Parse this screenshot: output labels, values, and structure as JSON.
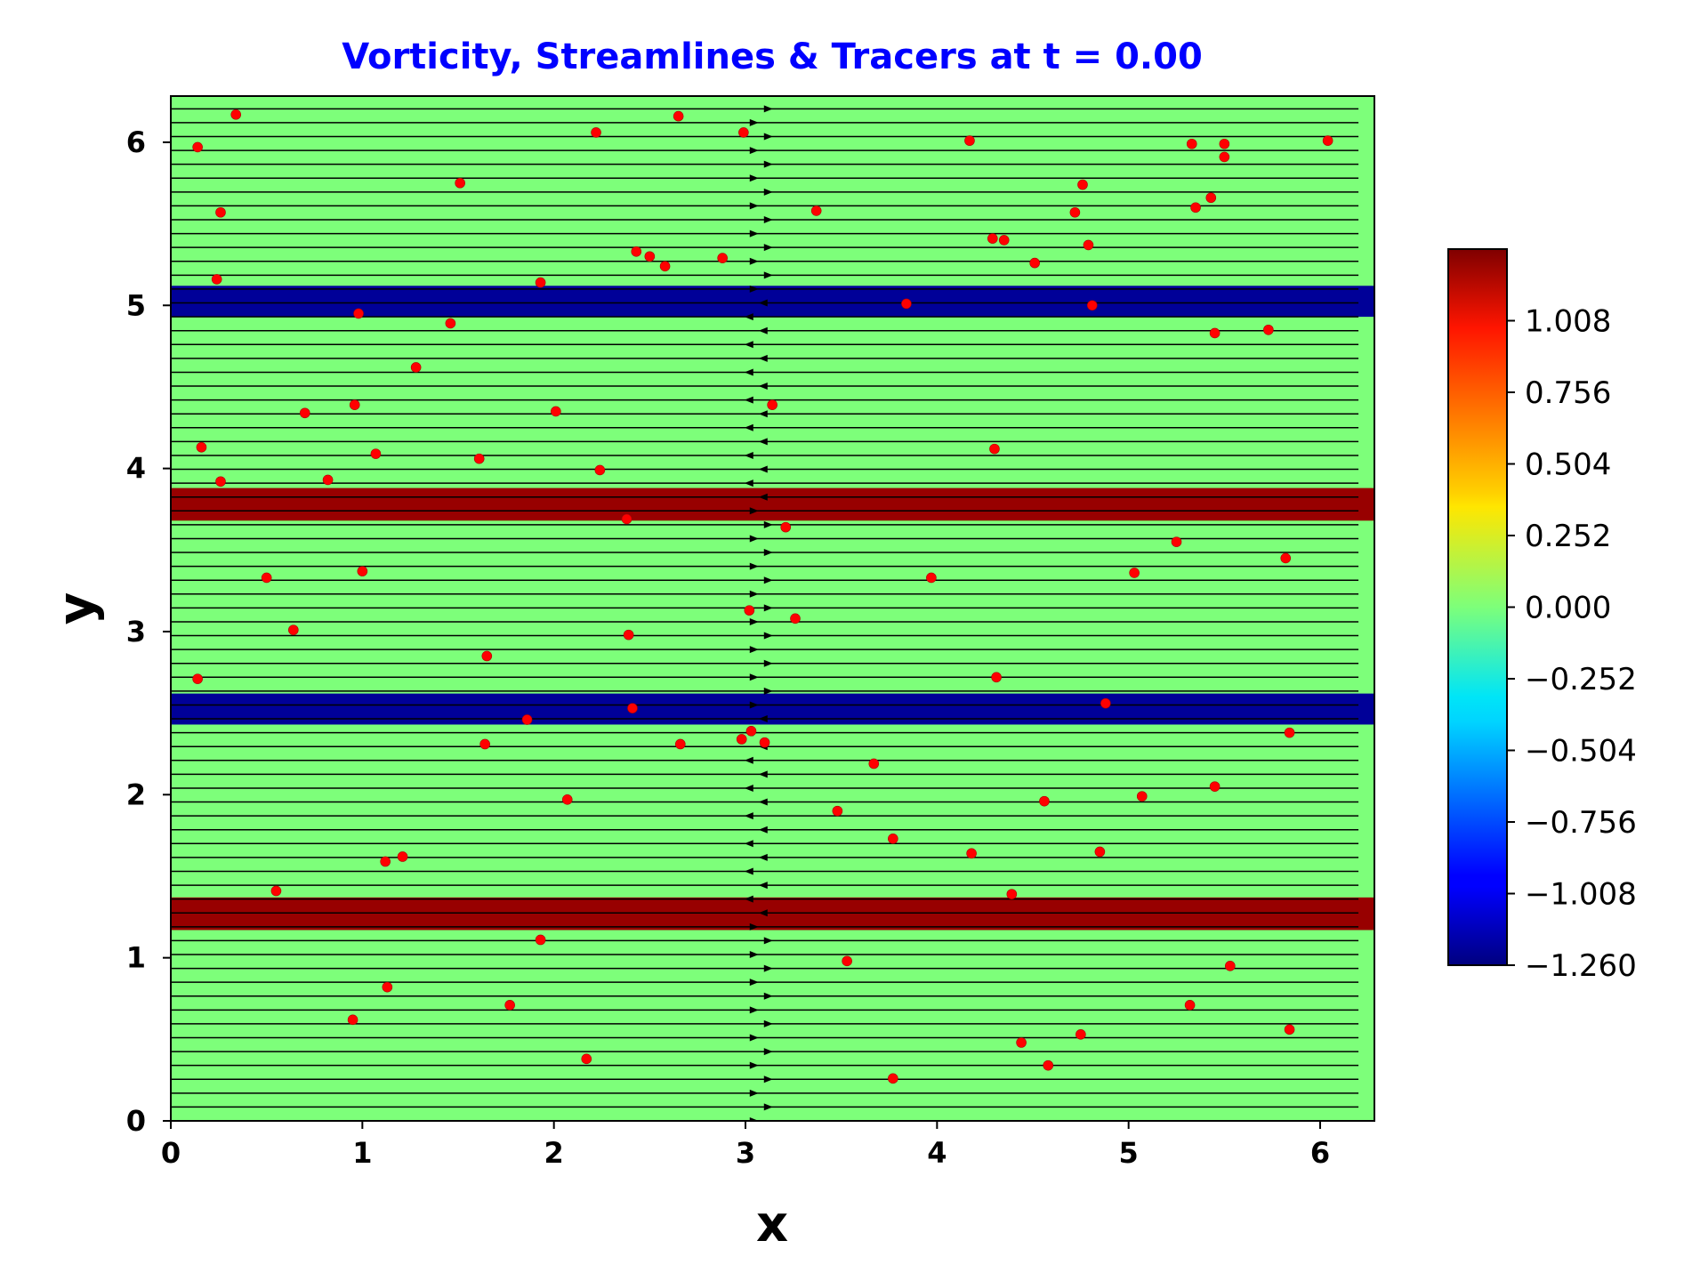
{
  "chart_data": {
    "type": "heatmap",
    "title": "Vorticity, Streamlines & Tracers at t = 0.00",
    "xlabel": "x",
    "ylabel": "y",
    "xlim": [
      0,
      6.2832
    ],
    "ylim": [
      0,
      6.2832
    ],
    "x_ticks": [
      "0",
      "1",
      "2",
      "3",
      "4",
      "5",
      "6"
    ],
    "y_ticks": [
      "0",
      "1",
      "2",
      "3",
      "4",
      "5",
      "6"
    ],
    "background_vorticity": 0.0,
    "vorticity_bands": [
      {
        "y0": 1.17,
        "y1": 1.37,
        "value": 1.2
      },
      {
        "y0": 2.43,
        "y1": 2.62,
        "value": -1.2
      },
      {
        "y0": 3.68,
        "y1": 3.88,
        "value": 1.2
      },
      {
        "y0": 4.93,
        "y1": 5.12,
        "value": -1.2
      }
    ],
    "colorbar": {
      "colormap": "jet",
      "range": [
        -1.26,
        1.26
      ],
      "tick_values": [
        1.008,
        0.756,
        0.504,
        0.252,
        0.0,
        -0.252,
        -0.504,
        -0.756,
        -1.008,
        -1.26
      ],
      "tick_labels": [
        "1.008",
        "0.756",
        "0.504",
        "0.252",
        "0.000",
        "−0.252",
        "−0.504",
        "−0.756",
        "−1.008",
        "−1.260"
      ]
    },
    "streamlines": {
      "orientation": "horizontal",
      "y_spacing": 0.085,
      "x_end": 6.2
    },
    "tracers": [
      [
        0.14,
        5.97
      ],
      [
        0.34,
        6.17
      ],
      [
        0.26,
        5.57
      ],
      [
        0.24,
        5.16
      ],
      [
        0.98,
        4.95
      ],
      [
        1.46,
        4.89
      ],
      [
        1.51,
        5.75
      ],
      [
        1.93,
        5.14
      ],
      [
        2.22,
        6.06
      ],
      [
        2.65,
        6.16
      ],
      [
        2.99,
        6.06
      ],
      [
        2.43,
        5.33
      ],
      [
        2.5,
        5.3
      ],
      [
        2.58,
        5.24
      ],
      [
        2.88,
        5.29
      ],
      [
        1.28,
        4.62
      ],
      [
        0.7,
        4.34
      ],
      [
        0.96,
        4.39
      ],
      [
        2.01,
        4.35
      ],
      [
        0.16,
        4.13
      ],
      [
        1.07,
        4.09
      ],
      [
        1.61,
        4.06
      ],
      [
        0.26,
        3.92
      ],
      [
        0.82,
        3.93
      ],
      [
        2.24,
        3.99
      ],
      [
        2.38,
        3.69
      ],
      [
        0.5,
        3.33
      ],
      [
        1.0,
        3.37
      ],
      [
        0.64,
        3.01
      ],
      [
        2.39,
        2.98
      ],
      [
        1.65,
        2.85
      ],
      [
        0.14,
        2.71
      ],
      [
        1.86,
        2.46
      ],
      [
        2.41,
        2.53
      ],
      [
        1.64,
        2.31
      ],
      [
        2.66,
        2.31
      ],
      [
        2.07,
        1.97
      ],
      [
        1.12,
        1.59
      ],
      [
        1.21,
        1.62
      ],
      [
        0.55,
        1.41
      ],
      [
        1.93,
        1.11
      ],
      [
        1.13,
        0.82
      ],
      [
        1.77,
        0.71
      ],
      [
        0.95,
        0.62
      ],
      [
        2.17,
        0.38
      ],
      [
        3.02,
        3.13
      ],
      [
        3.14,
        4.39
      ],
      [
        3.21,
        3.64
      ],
      [
        3.26,
        3.08
      ],
      [
        2.98,
        2.34
      ],
      [
        3.03,
        2.39
      ],
      [
        3.1,
        2.32
      ],
      [
        3.37,
        5.58
      ],
      [
        3.84,
        5.01
      ],
      [
        4.17,
        6.01
      ],
      [
        4.29,
        5.41
      ],
      [
        4.35,
        5.4
      ],
      [
        4.51,
        5.26
      ],
      [
        4.72,
        5.57
      ],
      [
        4.76,
        5.74
      ],
      [
        4.79,
        5.37
      ],
      [
        4.81,
        5.0
      ],
      [
        4.3,
        4.12
      ],
      [
        3.97,
        3.33
      ],
      [
        4.31,
        2.72
      ],
      [
        4.88,
        2.56
      ],
      [
        3.67,
        2.19
      ],
      [
        3.48,
        1.9
      ],
      [
        3.77,
        1.73
      ],
      [
        4.18,
        1.64
      ],
      [
        4.56,
        1.96
      ],
      [
        4.85,
        1.65
      ],
      [
        4.39,
        1.39
      ],
      [
        3.53,
        0.98
      ],
      [
        4.44,
        0.48
      ],
      [
        4.58,
        0.34
      ],
      [
        4.75,
        0.53
      ],
      [
        3.77,
        0.26
      ],
      [
        5.33,
        5.99
      ],
      [
        5.5,
        5.99
      ],
      [
        5.5,
        5.91
      ],
      [
        5.35,
        5.6
      ],
      [
        5.43,
        5.66
      ],
      [
        5.45,
        4.83
      ],
      [
        5.73,
        4.85
      ],
      [
        6.04,
        6.01
      ],
      [
        5.25,
        3.55
      ],
      [
        5.82,
        3.45
      ],
      [
        5.03,
        3.36
      ],
      [
        5.84,
        2.38
      ],
      [
        5.07,
        1.99
      ],
      [
        5.45,
        2.05
      ],
      [
        5.53,
        0.95
      ],
      [
        5.32,
        0.71
      ],
      [
        5.84,
        0.56
      ]
    ]
  }
}
